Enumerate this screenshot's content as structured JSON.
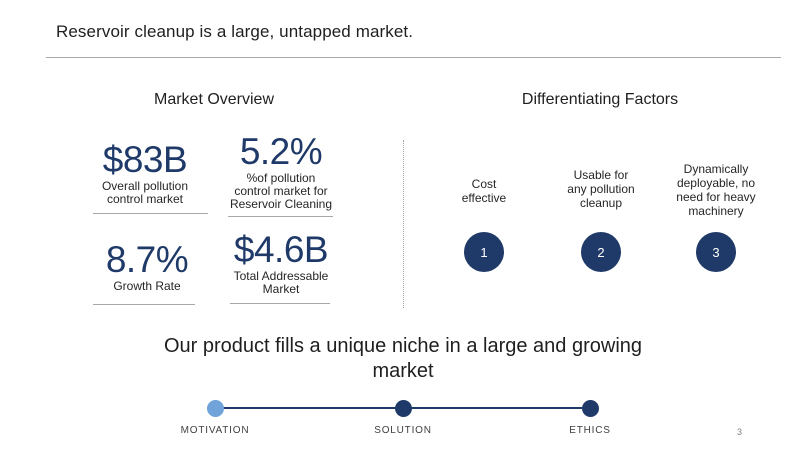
{
  "slide": {
    "title": "Reservoir cleanup is a large, untapped market.",
    "page_number": "3"
  },
  "market_overview": {
    "heading": "Market Overview",
    "stats": [
      {
        "value": "$83B",
        "label_lines": [
          "Overall pollution",
          "control market"
        ]
      },
      {
        "value": "5.2%",
        "label_lines": [
          "%of pollution",
          "control market for",
          "Reservoir Cleaning"
        ]
      },
      {
        "value": "8.7%",
        "label_lines": [
          "Growth Rate"
        ]
      },
      {
        "value": "$4.6B",
        "label_lines": [
          "Total Addressable",
          "Market"
        ]
      }
    ]
  },
  "differentiating_factors": {
    "heading": "Differentiating Factors",
    "factors": [
      {
        "number": "1",
        "text_lines": [
          "Cost",
          "effective"
        ]
      },
      {
        "number": "2",
        "text_lines": [
          "Usable for",
          "any pollution",
          "cleanup"
        ]
      },
      {
        "number": "3",
        "text_lines": [
          "Dynamically",
          "deployable, no",
          "need for heavy",
          "machinery"
        ]
      }
    ]
  },
  "tagline_lines": [
    "Our product fills a unique niche in a large and growing",
    "market"
  ],
  "timeline": {
    "steps": [
      {
        "label": "MOTIVATION",
        "active": true
      },
      {
        "label": "SOLUTION",
        "active": false
      },
      {
        "label": "ETHICS",
        "active": false
      }
    ]
  },
  "colors": {
    "accent_navy": "#1f3a68",
    "active_step": "#6fa3da",
    "rule_gray": "#a9a9a9"
  }
}
